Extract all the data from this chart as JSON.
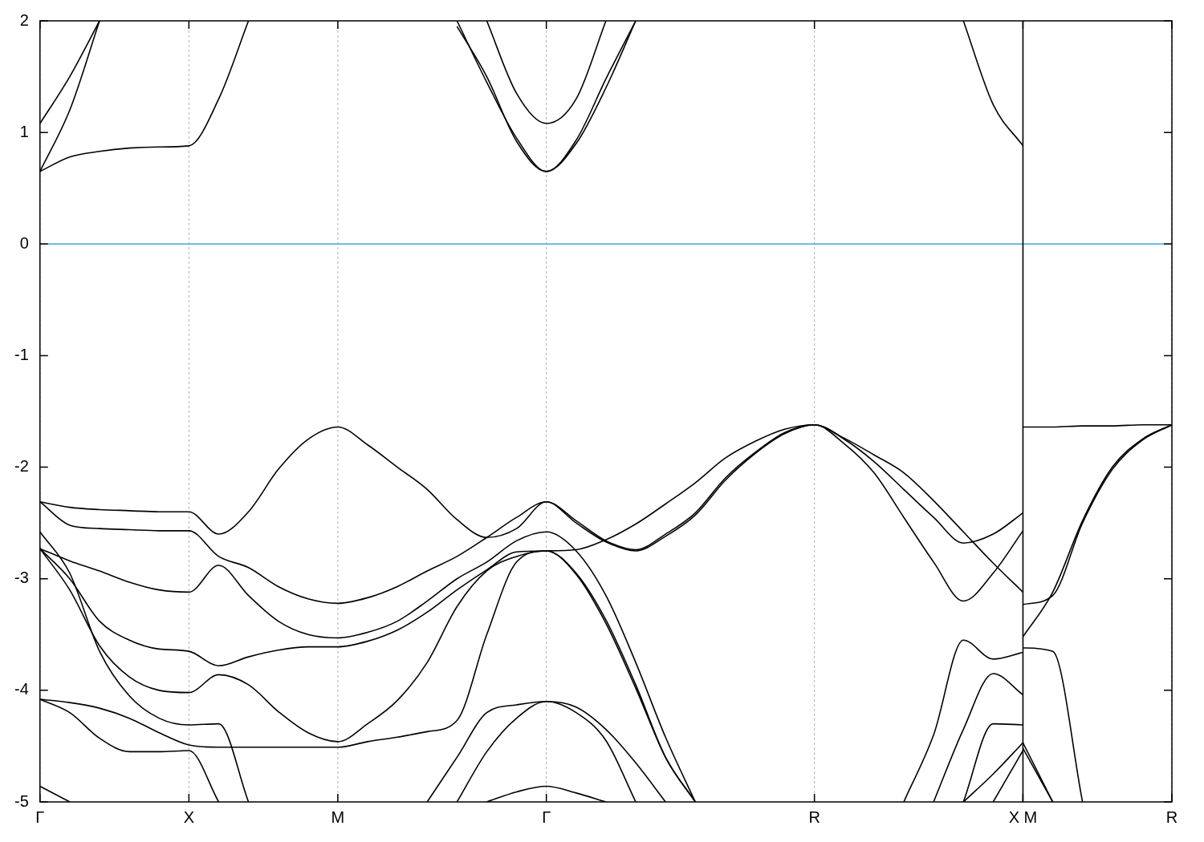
{
  "chart_data": {
    "type": "line",
    "categories": [
      "Γ",
      null,
      null,
      null,
      null,
      "X",
      null,
      null,
      null,
      null,
      "M",
      null,
      null,
      null,
      null,
      null,
      null,
      "Γ",
      null,
      null,
      null,
      null,
      null,
      null,
      null,
      null,
      "R",
      null,
      null,
      null,
      null,
      null,
      null,
      "X M",
      null,
      null,
      null,
      null,
      "R"
    ],
    "ylim": [
      -5,
      2
    ],
    "yticks": [
      -5,
      -4,
      -3,
      -2,
      -1,
      0,
      1,
      2
    ],
    "grid": "x",
    "ref_lines": [
      {
        "axis": "y",
        "value": 0,
        "color": "#3ea6d9"
      },
      {
        "axis": "x",
        "value": "X M",
        "color": "#000000"
      }
    ],
    "series": [
      {
        "color": "#000000",
        "values": [
          1.08,
          1.5,
          2,
          null,
          null,
          null,
          null,
          null,
          null,
          null,
          null,
          null,
          null,
          null,
          null,
          null,
          null,
          null,
          null,
          null,
          null,
          null,
          null,
          null,
          null,
          null,
          null,
          null,
          null,
          null,
          null,
          null,
          null,
          null,
          null,
          null,
          null,
          null,
          null
        ]
      },
      {
        "color": "#000000",
        "values": [
          0.65,
          1.2,
          2,
          null,
          null,
          null,
          null,
          null,
          null,
          null,
          null,
          null,
          null,
          null,
          null,
          null,
          null,
          null,
          null,
          null,
          null,
          null,
          null,
          null,
          null,
          null,
          null,
          null,
          null,
          null,
          null,
          null,
          null,
          null,
          null,
          null,
          null,
          null,
          null
        ]
      },
      {
        "color": "#000000",
        "values": [
          0.65,
          0.78,
          0.83,
          0.86,
          0.87,
          0.88,
          1.3,
          2,
          null,
          null,
          null,
          null,
          null,
          null,
          null,
          null,
          null,
          null,
          null,
          null,
          null,
          null,
          null,
          null,
          null,
          null,
          null,
          null,
          null,
          null,
          null,
          null,
          null,
          null,
          null,
          null,
          null,
          null,
          null
        ]
      },
      {
        "color": "#000000",
        "values": [
          null,
          null,
          null,
          null,
          null,
          null,
          null,
          null,
          null,
          null,
          null,
          null,
          null,
          null,
          null,
          2,
          1.35,
          1.08,
          1.3,
          2,
          null,
          null,
          null,
          null,
          null,
          null,
          null,
          null,
          null,
          null,
          null,
          null,
          null,
          null,
          null,
          null,
          null,
          null,
          null
        ]
      },
      {
        "color": "#000000",
        "values": [
          null,
          null,
          null,
          null,
          null,
          null,
          null,
          null,
          null,
          null,
          null,
          null,
          null,
          null,
          2,
          1.45,
          0.95,
          0.65,
          0.93,
          1.48,
          2,
          null,
          null,
          null,
          null,
          null,
          null,
          null,
          null,
          null,
          null,
          null,
          null,
          null,
          null,
          null,
          null,
          null,
          null
        ]
      },
      {
        "color": "#000000",
        "values": [
          null,
          null,
          null,
          null,
          null,
          null,
          null,
          null,
          null,
          null,
          null,
          null,
          null,
          null,
          1.95,
          1.5,
          0.92,
          0.65,
          0.9,
          1.4,
          2,
          null,
          null,
          null,
          null,
          null,
          null,
          null,
          null,
          null,
          null,
          null,
          null,
          null,
          null,
          null,
          null,
          null,
          null
        ]
      },
      {
        "color": "#000000",
        "values": [
          null,
          null,
          null,
          null,
          null,
          null,
          null,
          null,
          null,
          null,
          null,
          null,
          null,
          null,
          null,
          null,
          null,
          null,
          null,
          null,
          null,
          null,
          null,
          null,
          null,
          null,
          null,
          null,
          null,
          null,
          null,
          2,
          1.25,
          0.88,
          null,
          null,
          null,
          null,
          null
        ]
      },
      {
        "color": "#000000",
        "values": [
          -2.31,
          -2.36,
          -2.38,
          -2.39,
          -2.4,
          -2.4,
          -2.6,
          -2.4,
          -2.02,
          -1.75,
          -1.64,
          -1.8,
          -2.0,
          -2.2,
          -2.47,
          -2.63,
          -2.55,
          -2.31,
          -2.5,
          -2.67,
          -2.75,
          -2.62,
          -2.43,
          -2.12,
          -1.88,
          -1.7,
          -1.62,
          -1.75,
          -1.95,
          -2.2,
          -2.45,
          -2.68,
          -2.6,
          -2.41,
          null,
          null,
          null,
          null,
          null
        ]
      },
      {
        "color": "#000000",
        "values": [
          -2.31,
          -2.52,
          -2.55,
          -2.56,
          -2.57,
          -2.57,
          -2.8,
          -2.9,
          -3.07,
          -3.18,
          -3.22,
          -3.17,
          -3.07,
          -2.93,
          -2.8,
          -2.63,
          -2.45,
          -2.31,
          -2.48,
          -2.66,
          -2.74,
          -2.6,
          -2.41,
          -2.1,
          -1.87,
          -1.69,
          -1.62,
          -1.74,
          -1.89,
          -2.05,
          -2.3,
          -2.58,
          -2.86,
          -3.12,
          null,
          null,
          null,
          null,
          null
        ]
      },
      {
        "color": "#000000",
        "values": [
          -2.58,
          -2.95,
          -3.65,
          -4.05,
          -4.25,
          -4.31,
          -4.3,
          -5,
          null,
          null,
          null,
          null,
          null,
          null,
          null,
          null,
          null,
          null,
          null,
          null,
          null,
          null,
          null,
          null,
          null,
          null,
          null,
          null,
          null,
          null,
          null,
          null,
          null,
          null,
          null,
          null,
          null,
          null,
          null
        ]
      },
      {
        "color": "#000000",
        "values": [
          null,
          null,
          null,
          null,
          null,
          null,
          null,
          null,
          null,
          null,
          null,
          null,
          null,
          -5,
          -4.6,
          -4.2,
          -4.13,
          -4.1,
          -4.2,
          -4.45,
          -5,
          null,
          null,
          null,
          null,
          null,
          null,
          null,
          null,
          null,
          null,
          null,
          null,
          null,
          null,
          null,
          null,
          null,
          null
        ]
      },
      {
        "color": "#000000",
        "values": [
          -4.08,
          -4.2,
          -4.43,
          -4.55,
          -4.55,
          -4.54,
          -5,
          null,
          null,
          null,
          null,
          null,
          null,
          null,
          null,
          null,
          null,
          null,
          null,
          null,
          null,
          null,
          null,
          null,
          null,
          null,
          null,
          null,
          null,
          null,
          null,
          null,
          null,
          null,
          null,
          null,
          null,
          null,
          null
        ]
      },
      {
        "color": "#000000",
        "values": [
          null,
          null,
          null,
          null,
          null,
          null,
          null,
          null,
          null,
          null,
          null,
          null,
          null,
          null,
          -5,
          -4.55,
          -4.25,
          -4.1,
          -4.15,
          -4.35,
          -4.65,
          -5,
          null,
          null,
          null,
          null,
          null,
          null,
          null,
          null,
          null,
          null,
          null,
          null,
          null,
          null,
          null,
          null,
          null
        ]
      },
      {
        "color": "#000000",
        "values": [
          -2.73,
          -3.1,
          -3.6,
          -3.88,
          -4.0,
          -4.02,
          -3.86,
          -3.95,
          -4.19,
          -4.38,
          -4.46,
          -4.3,
          -4.09,
          -3.75,
          -3.25,
          -2.93,
          -2.8,
          -2.75,
          -2.96,
          -3.4,
          -3.98,
          -4.6,
          -5,
          null,
          null,
          null,
          null,
          null,
          null,
          null,
          null,
          null,
          null,
          null,
          null,
          null,
          null,
          null,
          null
        ]
      },
      {
        "color": "#000000",
        "values": [
          -2.73,
          -3.0,
          -3.38,
          -3.55,
          -3.63,
          -3.65,
          -3.78,
          -3.7,
          -3.64,
          -3.61,
          -3.61,
          -3.56,
          -3.46,
          -3.3,
          -3.1,
          -2.92,
          -2.76,
          -2.75,
          -2.74,
          -2.65,
          -2.51,
          -2.33,
          -2.14,
          -1.92,
          -1.77,
          -1.66,
          -1.62,
          -1.79,
          -2.05,
          -2.45,
          -2.85,
          -3.2,
          -2.95,
          -2.57,
          null,
          null,
          null,
          null,
          null
        ]
      },
      {
        "color": "#000000",
        "values": [
          -2.73,
          -2.84,
          -2.93,
          -3.03,
          -3.1,
          -3.12,
          -2.88,
          -3.15,
          -3.38,
          -3.5,
          -3.53,
          -3.48,
          -3.38,
          -3.2,
          -3.0,
          -2.85,
          -2.66,
          -2.58,
          -2.75,
          -3.15,
          -3.75,
          -4.42,
          -5,
          null,
          null,
          null,
          null,
          null,
          null,
          null,
          null,
          null,
          null,
          null,
          null,
          null,
          null,
          null,
          null
        ]
      },
      {
        "color": "#000000",
        "values": [
          -4.08,
          -4.11,
          -4.16,
          -4.25,
          -4.38,
          -4.49,
          -4.51,
          -4.51,
          -4.51,
          -4.51,
          -4.51,
          -4.46,
          -4.42,
          -4.37,
          -4.27,
          -3.5,
          -2.85,
          -2.75,
          -2.95,
          -3.37,
          -3.95,
          -4.6,
          -5,
          null,
          null,
          null,
          null,
          null,
          null,
          null,
          null,
          null,
          null,
          null,
          null,
          null,
          null,
          null,
          null
        ]
      },
      {
        "color": "#000000",
        "values": [
          -4.86,
          -5,
          null,
          null,
          null,
          null,
          null,
          null,
          null,
          null,
          null,
          null,
          null,
          null,
          null,
          null,
          null,
          null,
          null,
          null,
          null,
          null,
          null,
          null,
          null,
          null,
          null,
          null,
          null,
          null,
          null,
          null,
          null,
          null,
          null,
          null,
          null,
          null,
          null
        ]
      },
      {
        "color": "#000000",
        "values": [
          null,
          null,
          null,
          null,
          null,
          null,
          null,
          null,
          null,
          null,
          null,
          null,
          null,
          null,
          null,
          -5,
          -4.91,
          -4.86,
          -4.92,
          -5,
          null,
          null,
          null,
          null,
          null,
          null,
          null,
          null,
          null,
          null,
          null,
          null,
          null,
          null,
          null,
          null,
          null,
          null,
          null
        ]
      },
      {
        "color": "#000000",
        "values": [
          null,
          null,
          null,
          null,
          null,
          null,
          null,
          null,
          null,
          null,
          null,
          null,
          null,
          null,
          null,
          null,
          null,
          null,
          null,
          null,
          null,
          null,
          null,
          null,
          null,
          null,
          null,
          null,
          null,
          -5,
          -4.4,
          -3.55,
          -3.72,
          -3.66,
          null,
          null,
          null,
          null,
          null
        ]
      },
      {
        "color": "#000000",
        "values": [
          null,
          null,
          null,
          null,
          null,
          null,
          null,
          null,
          null,
          null,
          null,
          null,
          null,
          null,
          null,
          null,
          null,
          null,
          null,
          null,
          null,
          null,
          null,
          null,
          null,
          null,
          null,
          null,
          null,
          null,
          -5,
          -4.35,
          -3.85,
          -4.04,
          null,
          null,
          null,
          null,
          null
        ]
      },
      {
        "color": "#000000",
        "values": [
          null,
          null,
          null,
          null,
          null,
          null,
          null,
          null,
          null,
          null,
          null,
          null,
          null,
          null,
          null,
          null,
          null,
          null,
          null,
          null,
          null,
          null,
          null,
          null,
          null,
          null,
          null,
          null,
          null,
          null,
          null,
          -5,
          -4.3,
          -4.31,
          null,
          null,
          null,
          null,
          null
        ]
      },
      {
        "color": "#000000",
        "values": [
          null,
          null,
          null,
          null,
          null,
          null,
          null,
          null,
          null,
          null,
          null,
          null,
          null,
          null,
          null,
          null,
          null,
          null,
          null,
          null,
          null,
          null,
          null,
          null,
          null,
          null,
          null,
          null,
          null,
          null,
          null,
          -5,
          -4.75,
          -4.47,
          null,
          null,
          null,
          null,
          null
        ]
      },
      {
        "color": "#000000",
        "values": [
          null,
          null,
          null,
          null,
          null,
          null,
          null,
          null,
          null,
          null,
          null,
          null,
          null,
          null,
          null,
          null,
          null,
          null,
          null,
          null,
          null,
          null,
          null,
          null,
          null,
          null,
          null,
          null,
          null,
          null,
          null,
          null,
          -5,
          -4.54,
          null,
          null,
          null,
          null,
          null
        ]
      },
      {
        "color": "#000000",
        "values": [
          null,
          null,
          null,
          null,
          null,
          null,
          null,
          null,
          null,
          null,
          null,
          null,
          null,
          null,
          null,
          null,
          null,
          null,
          null,
          null,
          null,
          null,
          null,
          null,
          null,
          null,
          null,
          null,
          null,
          null,
          null,
          null,
          null,
          -3.23,
          -3.15,
          -2.5,
          -2.02,
          -1.76,
          -1.62
        ]
      },
      {
        "color": "#000000",
        "values": [
          null,
          null,
          null,
          null,
          null,
          null,
          null,
          null,
          null,
          null,
          null,
          null,
          null,
          null,
          null,
          null,
          null,
          null,
          null,
          null,
          null,
          null,
          null,
          null,
          null,
          null,
          null,
          null,
          null,
          null,
          null,
          null,
          null,
          -3.52,
          -3.12,
          -2.48,
          -2.0,
          -1.75,
          -1.62
        ]
      },
      {
        "color": "#000000",
        "values": [
          null,
          null,
          null,
          null,
          null,
          null,
          null,
          null,
          null,
          null,
          null,
          null,
          null,
          null,
          null,
          null,
          null,
          null,
          null,
          null,
          null,
          null,
          null,
          null,
          null,
          null,
          null,
          null,
          null,
          null,
          null,
          null,
          null,
          -3.62,
          -3.65,
          -5,
          null,
          null,
          null
        ]
      },
      {
        "color": "#000000",
        "values": [
          null,
          null,
          null,
          null,
          null,
          null,
          null,
          null,
          null,
          null,
          null,
          null,
          null,
          null,
          null,
          null,
          null,
          null,
          null,
          null,
          null,
          null,
          null,
          null,
          null,
          null,
          null,
          null,
          null,
          null,
          null,
          null,
          null,
          -4.47,
          -5,
          null,
          null,
          null,
          null
        ]
      },
      {
        "color": "#000000",
        "values": [
          null,
          null,
          null,
          null,
          null,
          null,
          null,
          null,
          null,
          null,
          null,
          null,
          null,
          null,
          null,
          null,
          null,
          null,
          null,
          null,
          null,
          null,
          null,
          null,
          null,
          null,
          null,
          null,
          null,
          null,
          null,
          null,
          null,
          -4.52,
          -5,
          null,
          null,
          null,
          null
        ]
      },
      {
        "color": "#000000",
        "values": [
          null,
          null,
          null,
          null,
          null,
          null,
          null,
          null,
          null,
          null,
          null,
          null,
          null,
          null,
          null,
          null,
          null,
          null,
          null,
          null,
          null,
          null,
          null,
          null,
          null,
          null,
          null,
          null,
          null,
          null,
          null,
          null,
          null,
          -1.64,
          -1.64,
          -1.63,
          -1.63,
          -1.62,
          -1.62
        ]
      }
    ]
  }
}
